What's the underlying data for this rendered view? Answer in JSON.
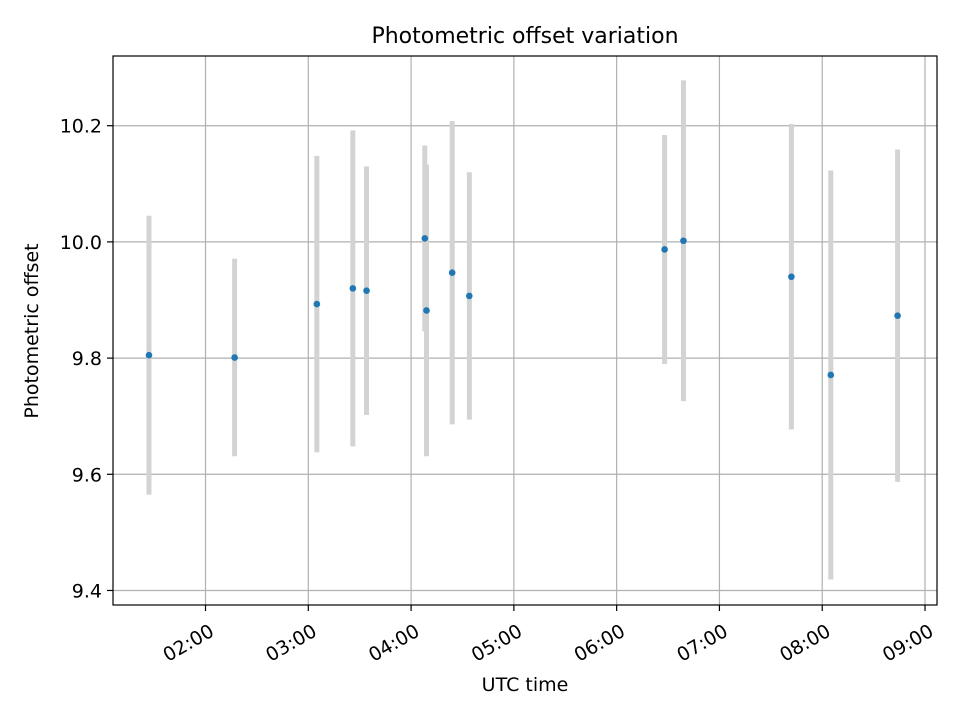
{
  "chart_data": {
    "type": "scatter",
    "title": "Photometric offset variation",
    "xlabel": "UTC time",
    "ylabel": "Photometric offset",
    "xlim": [
      "01:06",
      "09:07"
    ],
    "ylim": [
      9.375,
      10.32
    ],
    "grid": true,
    "x_ticks": [
      "02:00",
      "03:00",
      "04:00",
      "05:00",
      "06:00",
      "07:00",
      "08:00",
      "09:00"
    ],
    "y_ticks": [
      9.4,
      9.6,
      9.8,
      10.0,
      10.2
    ],
    "y_tick_labels": [
      "9.4",
      "9.6",
      "9.8",
      "10.0",
      "10.2"
    ],
    "points": [
      {
        "x": "01:27",
        "y": 9.805,
        "yerr": 0.24
      },
      {
        "x": "02:17",
        "y": 9.801,
        "yerr": 0.17
      },
      {
        "x": "03:05",
        "y": 9.893,
        "yerr": 0.255
      },
      {
        "x": "03:26",
        "y": 9.92,
        "yerr": 0.272
      },
      {
        "x": "03:34",
        "y": 9.916,
        "yerr": 0.214
      },
      {
        "x": "04:08",
        "y": 10.006,
        "yerr": 0.16
      },
      {
        "x": "04:09",
        "y": 9.882,
        "yerr": 0.251
      },
      {
        "x": "04:24",
        "y": 9.947,
        "yerr": 0.261
      },
      {
        "x": "04:34",
        "y": 9.907,
        "yerr": 0.213
      },
      {
        "x": "06:28",
        "y": 9.987,
        "yerr": 0.197
      },
      {
        "x": "06:39",
        "y": 10.002,
        "yerr": 0.276
      },
      {
        "x": "07:42",
        "y": 9.94,
        "yerr": 0.263
      },
      {
        "x": "08:05",
        "y": 9.771,
        "yerr": 0.352
      },
      {
        "x": "08:44",
        "y": 9.873,
        "yerr": 0.286
      }
    ],
    "colors": {
      "marker": "#1f77b4",
      "errorbar": "#d3d3d3",
      "grid": "#b0b0b0",
      "axes": "#000000"
    }
  }
}
